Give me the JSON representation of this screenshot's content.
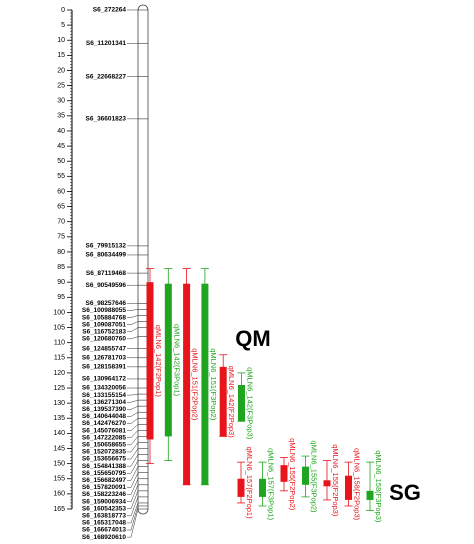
{
  "chart_data": {
    "type": "linkage-map",
    "ylim": [
      0,
      165
    ],
    "yticks": [
      0,
      5,
      10,
      15,
      20,
      25,
      30,
      35,
      40,
      45,
      50,
      55,
      60,
      65,
      70,
      75,
      80,
      85,
      90,
      95,
      100,
      105,
      110,
      115,
      120,
      125,
      130,
      135,
      140,
      145,
      150,
      155,
      160,
      165
    ],
    "markers": [
      {
        "name": "S6_272264",
        "position": 0
      },
      {
        "name": "S6_11201341",
        "position": 11
      },
      {
        "name": "S6_22668227",
        "position": 22
      },
      {
        "name": "S6_36601823",
        "position": 36
      },
      {
        "name": "S6_79915132",
        "position": 78
      },
      {
        "name": "S6_80634499",
        "position": 81
      },
      {
        "name": "S6_87119468",
        "position": 87
      },
      {
        "name": "S6_90549596",
        "position": 91
      },
      {
        "name": "S6_98257646",
        "position": 97
      },
      {
        "name": "S6_100988055",
        "position": 99
      },
      {
        "name": "S6_105884768",
        "position": 101
      },
      {
        "name": "S6_109087051",
        "position": 103
      },
      {
        "name": "S6_116752183",
        "position": 105
      },
      {
        "name": "S6_120680760",
        "position": 108
      },
      {
        "name": "S6_124855747",
        "position": 112
      },
      {
        "name": "S6_126781703",
        "position": 115
      },
      {
        "name": "S6_128158391",
        "position": 118
      },
      {
        "name": "S6_130964172",
        "position": 122
      },
      {
        "name": "S6_134320056",
        "position": 125
      },
      {
        "name": "S6_133155154",
        "position": 127
      },
      {
        "name": "S6_136271304",
        "position": 129
      },
      {
        "name": "S6_139537390",
        "position": 131
      },
      {
        "name": "S6_140644048",
        "position": 133
      },
      {
        "name": "S6_142476270",
        "position": 135
      },
      {
        "name": "S6_145076081",
        "position": 137
      },
      {
        "name": "S6_147222085",
        "position": 139
      },
      {
        "name": "S6_150658655",
        "position": 141
      },
      {
        "name": "S6_152072835",
        "position": 143
      },
      {
        "name": "S6_153656675",
        "position": 145
      },
      {
        "name": "S6_154841388",
        "position": 147
      },
      {
        "name": "S6_155650795",
        "position": 149
      },
      {
        "name": "S6_156682497",
        "position": 151
      },
      {
        "name": "S6_157820091",
        "position": 153
      },
      {
        "name": "S6_158223246",
        "position": 155
      },
      {
        "name": "S6_159006934",
        "position": 157
      },
      {
        "name": "S6_160542353",
        "position": 159
      },
      {
        "name": "S6_163818773",
        "position": 161
      },
      {
        "name": "S6_165317048",
        "position": 163
      },
      {
        "name": "S6_166674013",
        "position": 164
      },
      {
        "name": "S6_168920610",
        "position": 165
      }
    ],
    "groups": [
      {
        "label": "QM",
        "qtls": [
          {
            "name": "qMLN6_142(F2Pop1)",
            "color": "#e8141b",
            "ci": [
              85.5,
              150
            ],
            "interval": [
              90,
              142
            ]
          },
          {
            "name": "qMLN6_142(F3Pop1)",
            "color": "#1fa51f",
            "ci": [
              85.5,
              149
            ],
            "interval": [
              90.5,
              141
            ]
          },
          {
            "name": "qMLN6_151(F2Pop2)",
            "color": "#e8141b",
            "ci": [
              85.5,
              157
            ],
            "interval": [
              90.5,
              157
            ]
          },
          {
            "name": "qMLN6_151(F3Pop2)",
            "color": "#1fa51f",
            "ci": [
              85.5,
              157
            ],
            "interval": [
              90.5,
              157
            ]
          },
          {
            "name": "qMLN6_142(F2Pop3)",
            "color": "#e8141b",
            "ci": [
              114,
              141
            ],
            "interval": [
              118,
              141
            ]
          },
          {
            "name": "qMLN6_142(F3Pop3)",
            "color": "#1fa51f",
            "ci": [
              120,
              136
            ],
            "interval": [
              124,
              136
            ]
          }
        ]
      },
      {
        "label": "SG",
        "qtls": [
          {
            "name": "qMLN6_157(F2Pop1)",
            "color": "#e8141b",
            "ci": [
              149.5,
              163
            ],
            "interval": [
              155,
              161
            ]
          },
          {
            "name": "qMLN6_157(F3Pop1)",
            "color": "#1fa51f",
            "ci": [
              149.5,
              164
            ],
            "interval": [
              155,
              161
            ]
          },
          {
            "name": "qMLN6_155(F2Pop2)",
            "color": "#e8141b",
            "ci": [
              148,
              159
            ],
            "interval": [
              150.5,
              156
            ]
          },
          {
            "name": "qMLN6_155(F3Pop2)",
            "color": "#1fa51f",
            "ci": [
              147.5,
              161
            ],
            "interval": [
              151,
              157
            ]
          },
          {
            "name": "qMLN6_155(F2Pop3)",
            "color": "#e8141b",
            "ci": [
              149,
              162
            ],
            "interval": [
              155.5,
              157.5
            ]
          },
          {
            "name": "qMLN6_158(F2Pop3)",
            "color": "#e8141b",
            "ci": [
              149.5,
              164
            ],
            "interval": [
              154,
              162
            ]
          },
          {
            "name": "qMLN6_158(F3Pop3)",
            "color": "#1fa51f",
            "ci": [
              149.5,
              165.5
            ],
            "interval": [
              159,
              162
            ]
          }
        ]
      }
    ]
  }
}
